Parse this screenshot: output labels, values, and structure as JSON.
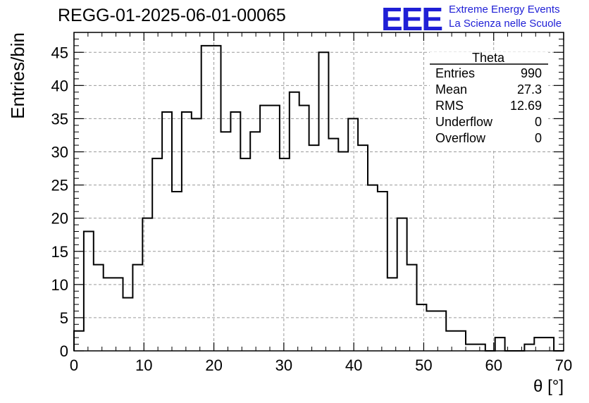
{
  "header": {
    "run_title": "REGG-01-2025-06-01-00065",
    "logo_text": "EEE",
    "org_line1": "Extreme Energy Events",
    "org_line2": "La Scienza nelle Scuole",
    "logo_color": "#1f1fd6"
  },
  "stats_box": {
    "title": "Theta",
    "rows": [
      {
        "label": "Entries",
        "value": "990"
      },
      {
        "label": "Mean",
        "value": "27.3"
      },
      {
        "label": "RMS",
        "value": "12.69"
      },
      {
        "label": "Underflow",
        "value": "0"
      },
      {
        "label": "Overflow",
        "value": "0"
      }
    ]
  },
  "chart_data": {
    "type": "histogram",
    "xlabel": "θ [°]",
    "ylabel": "Entries/bin",
    "xlim": [
      0,
      70
    ],
    "ylim": [
      0,
      48
    ],
    "x_ticks": [
      0,
      10,
      20,
      30,
      40,
      50,
      60,
      70
    ],
    "y_ticks": [
      0,
      5,
      10,
      15,
      20,
      25,
      30,
      35,
      40,
      45
    ],
    "grid": true,
    "bin_edges": [
      0,
      1.4,
      2.8,
      4.2,
      5.6,
      7,
      8.4,
      9.8,
      11.2,
      12.6,
      14,
      15.4,
      16.8,
      18.2,
      19.6,
      21,
      22.4,
      23.8,
      25.2,
      26.6,
      28,
      29.4,
      30.8,
      32.2,
      33.6,
      35,
      36.4,
      37.8,
      39.2,
      40.6,
      42,
      43.4,
      44.8,
      46.2,
      47.6,
      49,
      50.4,
      51.8,
      53.2,
      54.6,
      56,
      57.4,
      58.8,
      60.2,
      61.6,
      63,
      64.4,
      65.8,
      67.2,
      68.6,
      70
    ],
    "values": [
      3,
      18,
      13,
      11,
      11,
      8,
      13,
      20,
      29,
      36,
      24,
      36,
      35,
      46,
      46,
      33,
      36,
      29,
      33,
      37,
      37,
      29,
      39,
      37,
      31,
      45,
      32,
      30,
      35,
      31,
      25,
      24,
      11,
      20,
      13,
      7,
      6,
      6,
      3,
      3,
      1,
      1,
      0,
      2,
      0,
      0,
      1,
      2,
      2,
      0
    ]
  }
}
